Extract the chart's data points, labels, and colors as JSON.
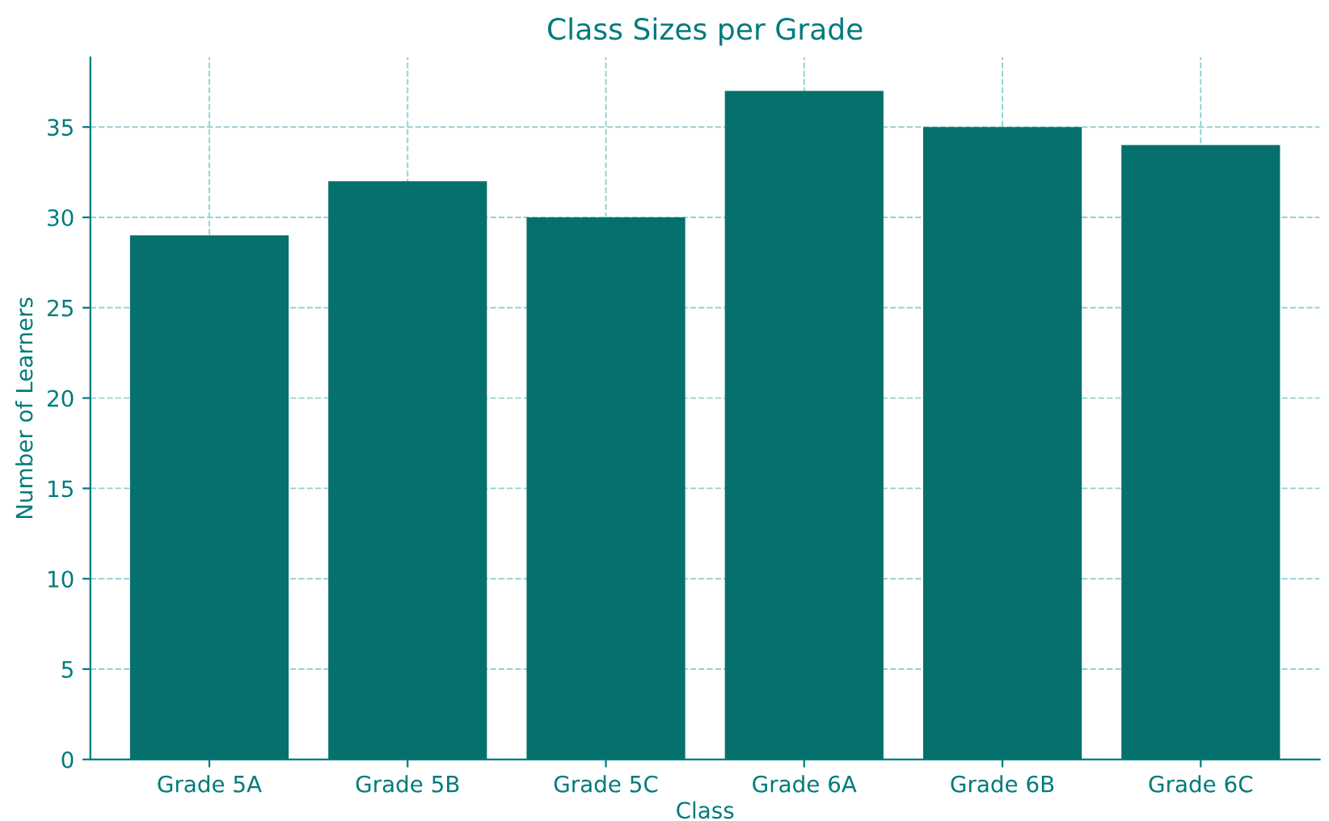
{
  "chart_data": {
    "type": "bar",
    "title": "Class Sizes per Grade",
    "xlabel": "Class",
    "ylabel": "Number of Learners",
    "categories": [
      "Grade 5A",
      "Grade 5B",
      "Grade 5C",
      "Grade 6A",
      "Grade 6B",
      "Grade 6C"
    ],
    "values": [
      29,
      32,
      30,
      37,
      35,
      34
    ],
    "color": "#06706d",
    "ylim": [
      0,
      38.85
    ],
    "yticks": [
      0,
      5,
      10,
      15,
      20,
      25,
      30,
      35
    ],
    "grid": true,
    "legend": false
  }
}
